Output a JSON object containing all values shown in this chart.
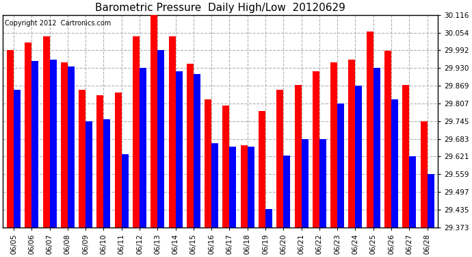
{
  "title": "Barometric Pressure  Daily High/Low  20120629",
  "copyright": "Copyright 2012  Cartronics.com",
  "dates": [
    "06/05",
    "06/06",
    "06/07",
    "06/08",
    "06/09",
    "06/10",
    "06/11",
    "06/12",
    "06/13",
    "06/14",
    "06/15",
    "06/16",
    "06/17",
    "06/18",
    "06/19",
    "06/20",
    "06/21",
    "06/22",
    "06/23",
    "06/24",
    "06/25",
    "06/26",
    "06/27",
    "06/28"
  ],
  "highs": [
    29.992,
    30.02,
    30.04,
    29.95,
    29.855,
    29.835,
    29.845,
    30.042,
    30.116,
    30.042,
    29.945,
    29.82,
    29.8,
    29.66,
    29.78,
    29.855,
    29.87,
    29.92,
    29.95,
    29.96,
    30.057,
    29.99,
    29.87,
    29.745
  ],
  "lows": [
    29.855,
    29.955,
    29.96,
    29.935,
    29.745,
    29.752,
    29.628,
    29.93,
    29.992,
    29.92,
    29.91,
    29.668,
    29.656,
    29.656,
    29.437,
    29.625,
    29.683,
    29.683,
    29.807,
    29.869,
    29.93,
    29.82,
    29.621,
    29.559
  ],
  "high_color": "#ff0000",
  "low_color": "#0000ff",
  "ylim_min": 29.373,
  "ylim_max": 30.116,
  "yticks": [
    29.373,
    29.435,
    29.497,
    29.559,
    29.621,
    29.683,
    29.745,
    29.807,
    29.869,
    29.93,
    29.992,
    30.054,
    30.116
  ],
  "bg_color": "#ffffff",
  "grid_color": "#b0b0b0",
  "bar_width": 0.38,
  "title_fontsize": 11,
  "tick_fontsize": 7.5,
  "copyright_fontsize": 7
}
